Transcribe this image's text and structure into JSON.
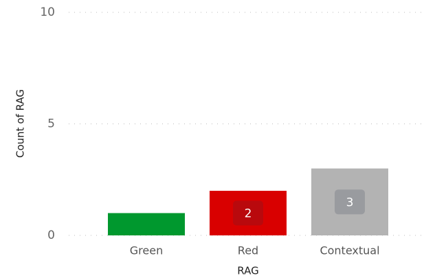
{
  "chart_data": {
    "type": "bar",
    "categories": [
      "Green",
      "Red",
      "Contextual"
    ],
    "values": [
      1,
      2,
      3
    ],
    "colors": [
      "#00982e",
      "#d90000",
      "#b3b3b3"
    ],
    "x_label": "RAG",
    "y_label": "Count of RAG",
    "ylim": [
      0,
      10
    ],
    "yticks": [
      0,
      5,
      10
    ],
    "grid": true
  }
}
